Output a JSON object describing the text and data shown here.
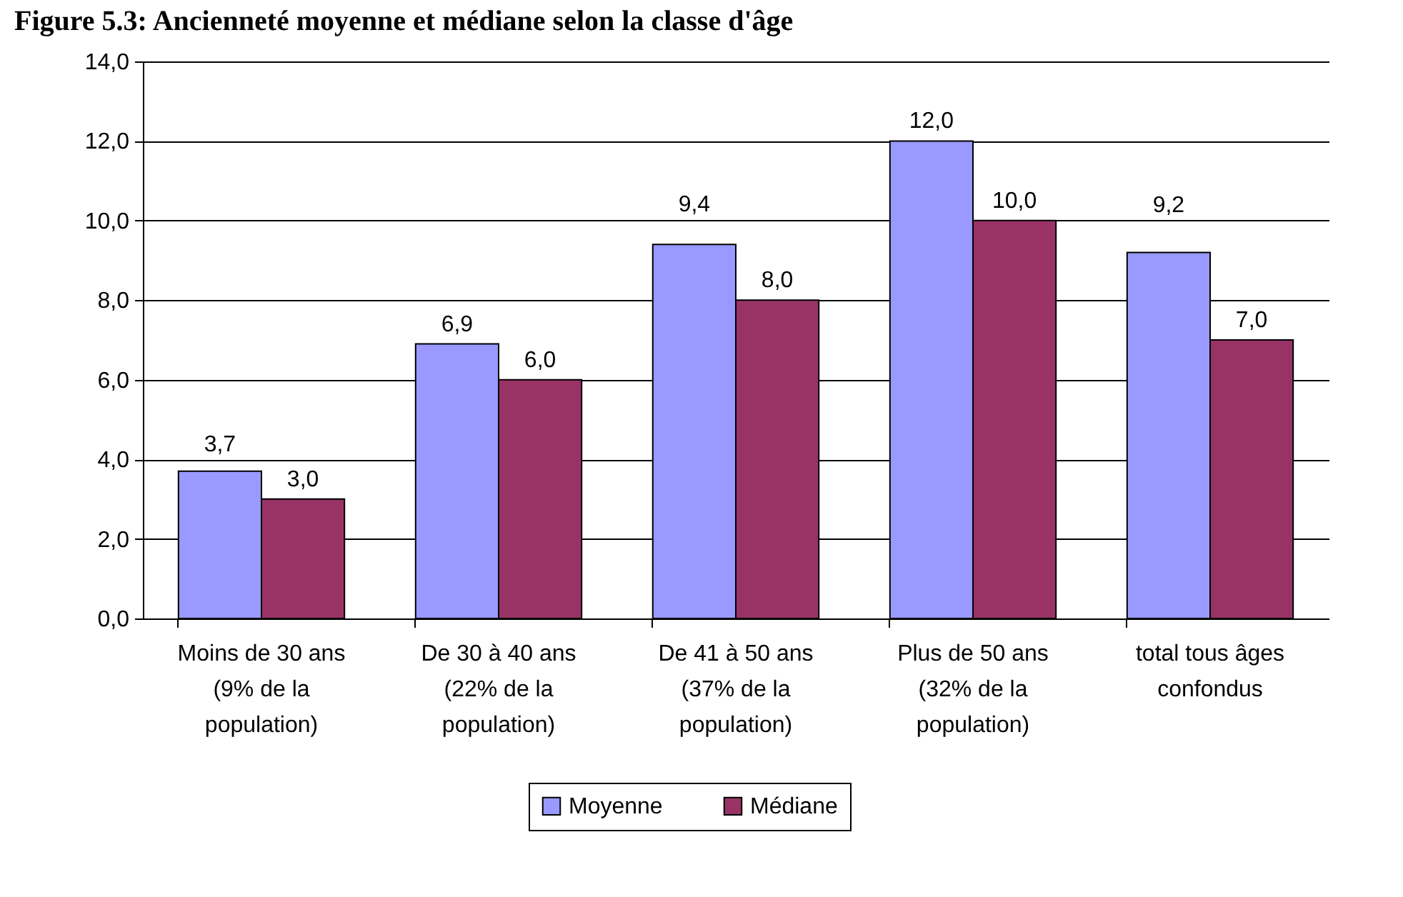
{
  "chart_data": {
    "type": "bar",
    "title": "Figure 5.3: Ancienneté moyenne et médiane selon la classe d'âge",
    "categories": [
      "Moins de 30 ans (9% de la population)",
      "De 30 à 40 ans (22% de la population)",
      "De 41 à 50 ans (37% de la population)",
      "Plus de 50 ans (32% de la population)",
      "total tous âges confondus"
    ],
    "series": [
      {
        "name": "Moyenne",
        "color": "#9999ff",
        "values": [
          3.7,
          6.9,
          9.4,
          12.0,
          9.2
        ],
        "value_labels": [
          "3,7",
          "6,9",
          "9,4",
          "12,0",
          "9,2"
        ]
      },
      {
        "name": "Médiane",
        "color": "#993366",
        "values": [
          3.0,
          6.0,
          8.0,
          10.0,
          7.0
        ],
        "value_labels": [
          "3,0",
          "6,0",
          "8,0",
          "10,0",
          "7,0"
        ]
      }
    ],
    "ylim": [
      0,
      14
    ],
    "yticks": [
      {
        "value": 0,
        "label": "0,0"
      },
      {
        "value": 2,
        "label": "2,0"
      },
      {
        "value": 4,
        "label": "4,0"
      },
      {
        "value": 6,
        "label": "6,0"
      },
      {
        "value": 8,
        "label": "8,0"
      },
      {
        "value": 10,
        "label": "10,0"
      },
      {
        "value": 12,
        "label": "12,0"
      },
      {
        "value": 14,
        "label": "14,0"
      }
    ],
    "grid": "y",
    "legend": "bottom"
  }
}
